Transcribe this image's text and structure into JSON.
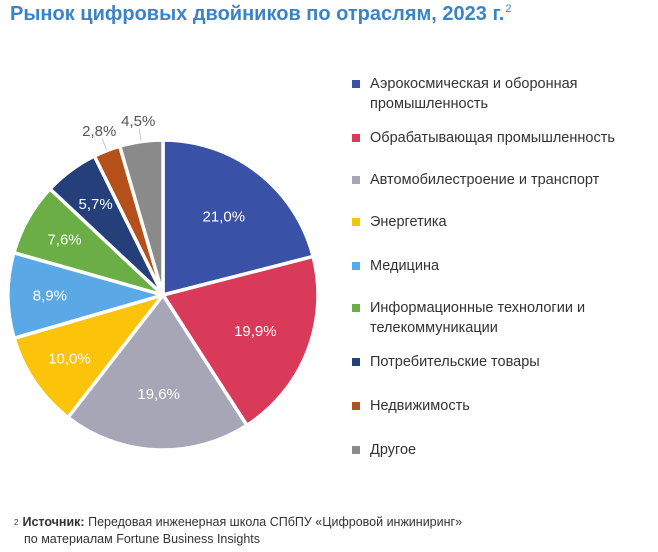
{
  "title": {
    "text": "Рынок цифровых двойников по отраслям, 2023 г.",
    "footnote_mark": "2"
  },
  "chart_data": {
    "type": "pie",
    "title": "Рынок цифровых двойников по отраслям, 2023 г.",
    "legend_position": "right",
    "slices": [
      {
        "label": "Аэрокосмическая и оборонная промышленность",
        "value": 21.0,
        "value_label": "21,0%",
        "color": "#3a51a8"
      },
      {
        "label": "Обрабатывающая промышленность",
        "value": 19.9,
        "value_label": "19,9%",
        "color": "#d93a5a"
      },
      {
        "label": "Автомобилестроение и транспорт",
        "value": 19.6,
        "value_label": "19,6%",
        "color": "#a7a6b6"
      },
      {
        "label": "Энергетика",
        "value": 10.0,
        "value_label": "10,0%",
        "color": "#fbc30a"
      },
      {
        "label": "Медицина",
        "value": 8.9,
        "value_label": "8,9%",
        "color": "#5aa9e6"
      },
      {
        "label": "Информационные технологии и телекоммуникации",
        "value": 7.6,
        "value_label": "7,6%",
        "color": "#6aae45"
      },
      {
        "label": "Потребительские товары",
        "value": 5.7,
        "value_label": "5,7%",
        "color": "#253f7a"
      },
      {
        "label": "Недвижимость",
        "value": 2.8,
        "value_label": "2,8%",
        "color": "#b6501a"
      },
      {
        "label": "Другое",
        "value": 4.5,
        "value_label": "4,5%",
        "color": "#8a8a8a"
      }
    ]
  },
  "footnote": {
    "mark": "2",
    "label": "Источник:",
    "text": "Передовая инженерная школа СПбПУ «Цифровой инжиниринг»",
    "line2": "по материалам Fortune Business Insights"
  }
}
